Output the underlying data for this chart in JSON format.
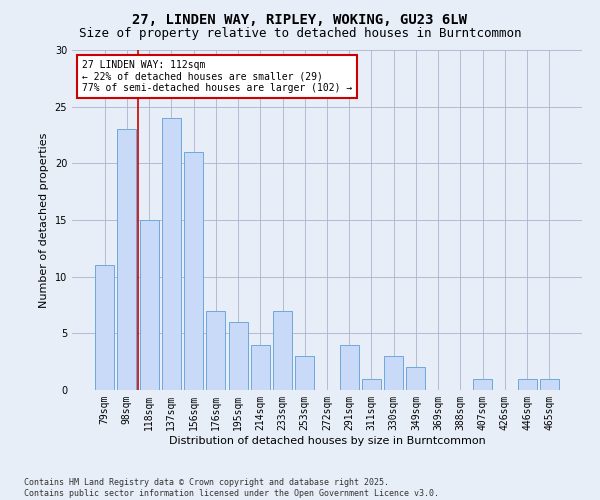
{
  "title1": "27, LINDEN WAY, RIPLEY, WOKING, GU23 6LW",
  "title2": "Size of property relative to detached houses in Burntcommon",
  "xlabel": "Distribution of detached houses by size in Burntcommon",
  "ylabel": "Number of detached properties",
  "categories": [
    "79sqm",
    "98sqm",
    "118sqm",
    "137sqm",
    "156sqm",
    "176sqm",
    "195sqm",
    "214sqm",
    "233sqm",
    "253sqm",
    "272sqm",
    "291sqm",
    "311sqm",
    "330sqm",
    "349sqm",
    "369sqm",
    "388sqm",
    "407sqm",
    "426sqm",
    "446sqm",
    "465sqm"
  ],
  "values": [
    11,
    23,
    15,
    24,
    21,
    7,
    6,
    4,
    7,
    3,
    0,
    4,
    1,
    3,
    2,
    0,
    0,
    1,
    0,
    1,
    1
  ],
  "bar_color": "#c9daf8",
  "bar_edge_color": "#6fa8dc",
  "background_color": "#e8eef8",
  "ylim": [
    0,
    30
  ],
  "yticks": [
    0,
    5,
    10,
    15,
    20,
    25,
    30
  ],
  "vline_x_idx": 2,
  "annotation_text": "27 LINDEN WAY: 112sqm\n← 22% of detached houses are smaller (29)\n77% of semi-detached houses are larger (102) →",
  "footer": "Contains HM Land Registry data © Crown copyright and database right 2025.\nContains public sector information licensed under the Open Government Licence v3.0.",
  "annotation_box_color": "#ffffff",
  "annotation_box_edge_color": "#cc0000",
  "vline_color": "#cc0000",
  "title1_fontsize": 10,
  "title2_fontsize": 9,
  "xlabel_fontsize": 8,
  "ylabel_fontsize": 8,
  "tick_fontsize": 7,
  "annot_fontsize": 7,
  "footer_fontsize": 6
}
